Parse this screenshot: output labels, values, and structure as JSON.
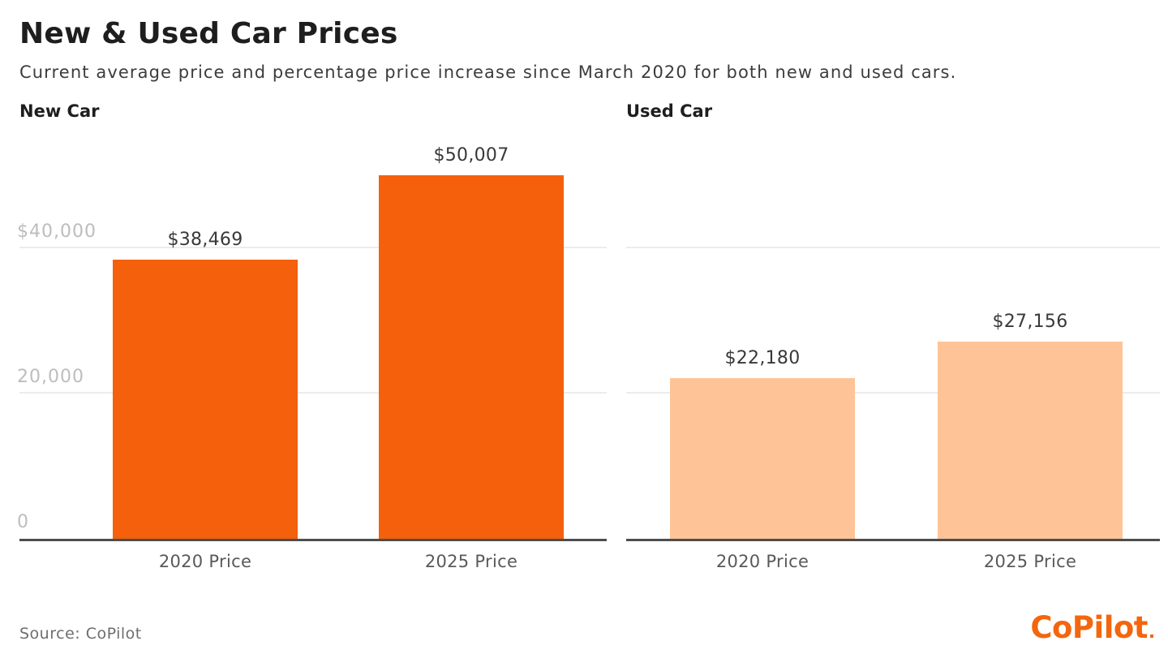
{
  "header": {
    "title": "New & Used Car Prices",
    "subtitle": "Current average price and percentage price increase since March 2020 for both new and used cars."
  },
  "colors": {
    "new_car_bar": "#F4600C",
    "used_car_bar": "#FEC497",
    "gridline": "#ECECEC",
    "axis_line": "#4D4D4D",
    "logo_orange": "#F4660E"
  },
  "chart_data": [
    {
      "type": "bar",
      "title": "New Car",
      "categories": [
        "2020 Price",
        "2025 Price"
      ],
      "values": [
        38469,
        50007
      ],
      "value_labels": [
        "$38,469",
        "$50,007"
      ],
      "bar_color": "#F4600C",
      "y_axis": {
        "ylim": [
          0,
          55800
        ],
        "gridlines": [
          20000,
          40000
        ],
        "ticks": [
          {
            "value": 0,
            "label": "0"
          },
          {
            "value": 20000,
            "label": "20,000"
          },
          {
            "value": 40000,
            "label": "$40,000"
          }
        ]
      },
      "grid": "on",
      "legend": "none"
    },
    {
      "type": "bar",
      "title": "Used Car",
      "categories": [
        "2020 Price",
        "2025 Price"
      ],
      "values": [
        22180,
        27156
      ],
      "value_labels": [
        "$22,180",
        "$27,156"
      ],
      "bar_color": "#FEC497",
      "y_axis": {
        "ylim": [
          0,
          55800
        ],
        "gridlines": [
          20000,
          40000
        ],
        "ticks": []
      },
      "grid": "on",
      "legend": "none"
    }
  ],
  "footer": {
    "source": "Source: CoPilot",
    "logo_text": "CoPilot"
  }
}
